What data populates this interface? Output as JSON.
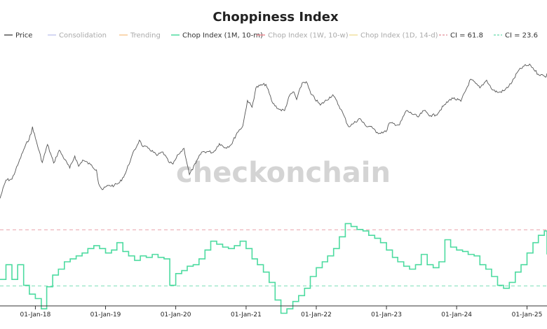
{
  "chart_data": {
    "type": "line",
    "title": "Choppiness Index",
    "watermark": "checkonchain",
    "x_ticks": [
      "01-Jan-18",
      "01-Jan-19",
      "01-Jan-20",
      "01-Jan-21",
      "01-Jan-22",
      "01-Jan-23",
      "01-Jan-24",
      "01-Jan-25"
    ],
    "x_range": [
      "2017-07-01",
      "2025-04-15"
    ],
    "price_yscale": "log",
    "price_range": [
      1800,
      120000
    ],
    "ci_range": [
      0,
      100
    ],
    "grid": false,
    "legend_position": "top",
    "legend": [
      {
        "label": "Price",
        "color": "#555555",
        "style": "solid",
        "faded": false
      },
      {
        "label": "Consolidation",
        "color": "#c5c8ef",
        "style": "solid",
        "faded": true
      },
      {
        "label": "Trending",
        "color": "#f9c896",
        "style": "solid",
        "faded": true
      },
      {
        "label": "Chop Index (1M, 10-m)",
        "color": "#4ddba0",
        "style": "solid",
        "faded": false
      },
      {
        "label": "Chop Index (1W, 10-w)",
        "color": "#ea8e96",
        "style": "solid",
        "faded": true
      },
      {
        "label": "Chop Index (1D, 14-d)",
        "color": "#f0e0a0",
        "style": "solid",
        "faded": true
      },
      {
        "label": "CI = 61.8",
        "color": "#e8a0a8",
        "style": "dashed",
        "faded": false
      },
      {
        "label": "CI = 23.6",
        "color": "#7ee0b8",
        "style": "dashed",
        "faded": false
      }
    ],
    "reference_lines": [
      {
        "name": "CI = 61.8",
        "value": 61.8,
        "color": "#e8a0a8"
      },
      {
        "name": "CI = 23.6",
        "value": 23.6,
        "color": "#7ee0b8"
      }
    ],
    "series": [
      {
        "name": "Price",
        "color": "#555555",
        "points": [
          [
            "2017-07-01",
            2500
          ],
          [
            "2017-08-01",
            4200
          ],
          [
            "2017-09-01",
            4300
          ],
          [
            "2017-10-01",
            6400
          ],
          [
            "2017-11-01",
            9900
          ],
          [
            "2017-12-10",
            15500
          ],
          [
            "2017-12-17",
            19000
          ],
          [
            "2018-01-01",
            13800
          ],
          [
            "2018-02-06",
            6900
          ],
          [
            "2018-03-05",
            11500
          ],
          [
            "2018-04-06",
            6800
          ],
          [
            "2018-05-05",
            9800
          ],
          [
            "2018-06-29",
            5900
          ],
          [
            "2018-07-25",
            8300
          ],
          [
            "2018-08-14",
            6200
          ],
          [
            "2018-09-04",
            7400
          ],
          [
            "2018-10-15",
            6500
          ],
          [
            "2018-11-15",
            5600
          ],
          [
            "2018-11-26",
            3800
          ],
          [
            "2018-12-15",
            3200
          ],
          [
            "2019-01-15",
            3600
          ],
          [
            "2019-02-15",
            3600
          ],
          [
            "2019-03-15",
            3900
          ],
          [
            "2019-04-15",
            5100
          ],
          [
            "2019-05-15",
            8000
          ],
          [
            "2019-06-26",
            13000
          ],
          [
            "2019-07-15",
            10800
          ],
          [
            "2019-08-15",
            10300
          ],
          [
            "2019-09-25",
            8400
          ],
          [
            "2019-10-26",
            9300
          ],
          [
            "2019-11-25",
            7000
          ],
          [
            "2019-12-18",
            6600
          ],
          [
            "2020-01-15",
            8700
          ],
          [
            "2020-02-13",
            10300
          ],
          [
            "2020-03-12",
            4900
          ],
          [
            "2020-04-15",
            6800
          ],
          [
            "2020-05-15",
            9300
          ],
          [
            "2020-06-15",
            9400
          ],
          [
            "2020-07-15",
            9200
          ],
          [
            "2020-08-15",
            11800
          ],
          [
            "2020-09-15",
            10500
          ],
          [
            "2020-10-15",
            11400
          ],
          [
            "2020-11-15",
            16000
          ],
          [
            "2020-12-15",
            19500
          ],
          [
            "2021-01-08",
            40000
          ],
          [
            "2021-02-01",
            33000
          ],
          [
            "2021-02-21",
            57000
          ],
          [
            "2021-03-14",
            61000
          ],
          [
            "2021-04-14",
            63000
          ],
          [
            "2021-05-19",
            37000
          ],
          [
            "2021-06-22",
            31000
          ],
          [
            "2021-07-20",
            30000
          ],
          [
            "2021-08-15",
            46000
          ],
          [
            "2021-09-06",
            51000
          ],
          [
            "2021-09-21",
            41000
          ],
          [
            "2021-10-20",
            66000
          ],
          [
            "2021-11-10",
            68000
          ],
          [
            "2021-12-04",
            48000
          ],
          [
            "2022-01-22",
            35000
          ],
          [
            "2022-03-28",
            47000
          ],
          [
            "2022-05-10",
            31000
          ],
          [
            "2022-06-18",
            19000
          ],
          [
            "2022-07-15",
            21000
          ],
          [
            "2022-08-15",
            24000
          ],
          [
            "2022-09-15",
            19500
          ],
          [
            "2022-10-15",
            19200
          ],
          [
            "2022-11-09",
            16000
          ],
          [
            "2022-12-30",
            16500
          ],
          [
            "2023-01-15",
            21000
          ],
          [
            "2023-03-10",
            20000
          ],
          [
            "2023-04-14",
            30000
          ],
          [
            "2023-06-15",
            25000
          ],
          [
            "2023-07-15",
            30000
          ],
          [
            "2023-08-18",
            26000
          ],
          [
            "2023-09-15",
            26500
          ],
          [
            "2023-10-24",
            34000
          ],
          [
            "2023-12-08",
            43000
          ],
          [
            "2024-01-23",
            39000
          ],
          [
            "2024-03-14",
            73000
          ],
          [
            "2024-05-01",
            57000
          ],
          [
            "2024-06-05",
            71000
          ],
          [
            "2024-07-05",
            54000
          ],
          [
            "2024-08-05",
            50000
          ],
          [
            "2024-09-06",
            53000
          ],
          [
            "2024-10-15",
            67000
          ],
          [
            "2024-11-15",
            91000
          ],
          [
            "2024-12-17",
            106000
          ],
          [
            "2025-01-20",
            108000
          ],
          [
            "2025-02-28",
            84000
          ],
          [
            "2025-03-15",
            83000
          ],
          [
            "2025-04-08",
            77000
          ],
          [
            "2025-04-15",
            86000
          ]
        ]
      },
      {
        "name": "Chop Index (1M, 10-m)",
        "color": "#4ddba0",
        "step": true,
        "points": [
          [
            "2017-07-01",
            28
          ],
          [
            "2017-08-01",
            38
          ],
          [
            "2017-09-01",
            28
          ],
          [
            "2017-10-01",
            38
          ],
          [
            "2017-11-01",
            24
          ],
          [
            "2017-12-01",
            18
          ],
          [
            "2018-01-01",
            15
          ],
          [
            "2018-02-01",
            8
          ],
          [
            "2018-03-01",
            23
          ],
          [
            "2018-04-01",
            31
          ],
          [
            "2018-05-01",
            35
          ],
          [
            "2018-06-01",
            40
          ],
          [
            "2018-07-01",
            42
          ],
          [
            "2018-08-01",
            44
          ],
          [
            "2018-09-01",
            46
          ],
          [
            "2018-10-01",
            49
          ],
          [
            "2018-11-01",
            51
          ],
          [
            "2018-12-01",
            49
          ],
          [
            "2019-01-01",
            46
          ],
          [
            "2019-02-01",
            48
          ],
          [
            "2019-03-01",
            53
          ],
          [
            "2019-04-01",
            47
          ],
          [
            "2019-05-01",
            44
          ],
          [
            "2019-06-01",
            41
          ],
          [
            "2019-07-01",
            44
          ],
          [
            "2019-08-01",
            43
          ],
          [
            "2019-09-01",
            45
          ],
          [
            "2019-10-01",
            43
          ],
          [
            "2019-11-01",
            42
          ],
          [
            "2019-12-01",
            24
          ],
          [
            "2020-01-01",
            32
          ],
          [
            "2020-02-01",
            34
          ],
          [
            "2020-03-01",
            37
          ],
          [
            "2020-04-01",
            38
          ],
          [
            "2020-05-01",
            42
          ],
          [
            "2020-06-01",
            48
          ],
          [
            "2020-07-01",
            54
          ],
          [
            "2020-08-01",
            52
          ],
          [
            "2020-09-01",
            50
          ],
          [
            "2020-10-01",
            49
          ],
          [
            "2020-11-01",
            51
          ],
          [
            "2020-12-01",
            54
          ],
          [
            "2021-01-01",
            49
          ],
          [
            "2021-02-01",
            42
          ],
          [
            "2021-03-01",
            38
          ],
          [
            "2021-04-01",
            33
          ],
          [
            "2021-05-01",
            26
          ],
          [
            "2021-06-01",
            14
          ],
          [
            "2021-07-01",
            5
          ],
          [
            "2021-08-01",
            8
          ],
          [
            "2021-09-01",
            13
          ],
          [
            "2021-10-01",
            17
          ],
          [
            "2021-11-01",
            22
          ],
          [
            "2021-12-01",
            30
          ],
          [
            "2022-01-01",
            36
          ],
          [
            "2022-02-01",
            40
          ],
          [
            "2022-03-01",
            44
          ],
          [
            "2022-04-01",
            49
          ],
          [
            "2022-05-01",
            57
          ],
          [
            "2022-06-01",
            66
          ],
          [
            "2022-07-01",
            64
          ],
          [
            "2022-08-01",
            62
          ],
          [
            "2022-09-01",
            61
          ],
          [
            "2022-10-01",
            58
          ],
          [
            "2022-11-01",
            56
          ],
          [
            "2022-12-01",
            53
          ],
          [
            "2023-01-01",
            48
          ],
          [
            "2023-02-01",
            43
          ],
          [
            "2023-03-01",
            40
          ],
          [
            "2023-04-01",
            37
          ],
          [
            "2023-05-01",
            35
          ],
          [
            "2023-06-01",
            38
          ],
          [
            "2023-07-01",
            45
          ],
          [
            "2023-08-01",
            38
          ],
          [
            "2023-09-01",
            36
          ],
          [
            "2023-10-01",
            40
          ],
          [
            "2023-11-01",
            55
          ],
          [
            "2023-12-01",
            50
          ],
          [
            "2024-01-01",
            48
          ],
          [
            "2024-02-01",
            47
          ],
          [
            "2024-03-01",
            45
          ],
          [
            "2024-04-01",
            44
          ],
          [
            "2024-05-01",
            38
          ],
          [
            "2024-06-01",
            35
          ],
          [
            "2024-07-01",
            30
          ],
          [
            "2024-08-01",
            24
          ],
          [
            "2024-09-01",
            22
          ],
          [
            "2024-10-01",
            26
          ],
          [
            "2024-11-01",
            33
          ],
          [
            "2024-12-01",
            38
          ],
          [
            "2025-01-01",
            46
          ],
          [
            "2025-02-01",
            53
          ],
          [
            "2025-03-01",
            58
          ],
          [
            "2025-04-01",
            61
          ],
          [
            "2025-04-15",
            45
          ]
        ]
      }
    ]
  }
}
